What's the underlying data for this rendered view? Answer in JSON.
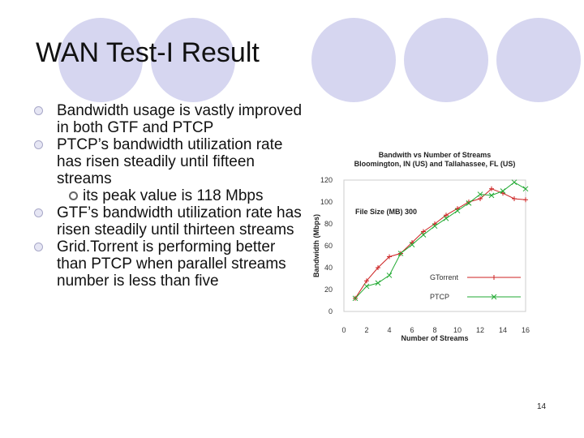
{
  "slide": {
    "title": "WAN Test-I Result",
    "bullets": [
      {
        "text": "Bandwidth usage is vastly improved in both GTF and PTCP",
        "subs": []
      },
      {
        "text": "PTCP’s bandwidth utilization rate has risen steadily until fifteen streams",
        "subs": [
          "its peak value is 118 Mbps"
        ]
      },
      {
        "text": "GTF’s bandwidth utilization rate has risen steadily until thirteen streams",
        "subs": []
      },
      {
        "text": "Grid.Torrent is performing better than PTCP when parallel streams number is less than five",
        "subs": []
      }
    ],
    "page_number": "14"
  },
  "chart_data": {
    "type": "line",
    "title": "Bandwith vs Number of Streams",
    "subtitle": "Bloomington, IN (US) and Tallahassee, FL (US)",
    "annotation": "File Size (MB) 300",
    "xlabel": "Number of Streams",
    "ylabel": "Bandwidth (Mbps)",
    "xlim": [
      0,
      16
    ],
    "ylim": [
      0,
      120
    ],
    "xticks": [
      0,
      2,
      4,
      6,
      8,
      10,
      12,
      14,
      16
    ],
    "yticks": [
      0,
      20,
      40,
      60,
      80,
      100,
      120
    ],
    "legend_position": "bottom-right",
    "series": [
      {
        "name": "GTorrent",
        "color": "#cc2222",
        "marker": "+",
        "x": [
          1,
          2,
          3,
          4,
          5,
          6,
          7,
          8,
          9,
          10,
          11,
          12,
          13,
          14,
          15,
          16
        ],
        "y": [
          12,
          28,
          40,
          50,
          53,
          63,
          73,
          80,
          88,
          94,
          100,
          103,
          112,
          108,
          103,
          102
        ]
      },
      {
        "name": "PTCP",
        "color": "#22aa33",
        "marker": "x",
        "x": [
          1,
          2,
          3,
          4,
          5,
          6,
          7,
          8,
          9,
          10,
          11,
          12,
          13,
          14,
          15,
          16
        ],
        "y": [
          12,
          23,
          26,
          33,
          53,
          61,
          70,
          78,
          85,
          92,
          99,
          107,
          106,
          110,
          118,
          112
        ]
      }
    ]
  }
}
